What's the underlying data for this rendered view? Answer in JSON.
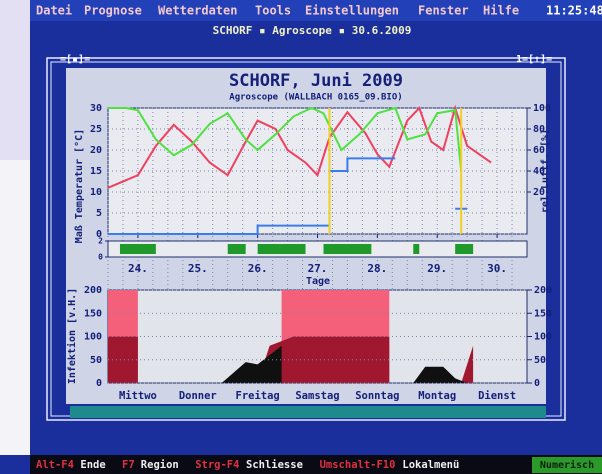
{
  "menu_bar": {
    "items": [
      "Datei",
      "Prognose",
      "Wetterdaten",
      "Tools",
      "Einstellungen",
      "Fenster",
      "Hilfe"
    ],
    "clock": "11:25:48"
  },
  "header": {
    "caption": "SCHORF ▪ Agroscope ▪ 30.6.2009"
  },
  "window": {
    "left_control": "=[▪]=",
    "right_control": "1=[↑]="
  },
  "weather_chart": {
    "type": "line",
    "title": "SCHORF, Juni 2009",
    "subtitle": "Agroscope (WALLBACH 0165_09.BIO)",
    "ylabel": "Maß Temperatur [°C]",
    "y2label": "rel.Luftf. [%]",
    "xlabel": "Tage",
    "xlim": [
      23.5,
      30.5
    ],
    "xticks": [
      {
        "value": 24,
        "label": "24."
      },
      {
        "value": 25,
        "label": "25."
      },
      {
        "value": 26,
        "label": "26."
      },
      {
        "value": 27,
        "label": "27."
      },
      {
        "value": 28,
        "label": "28."
      },
      {
        "value": 29,
        "label": "29."
      },
      {
        "value": 30,
        "label": "30."
      }
    ],
    "ylim": [
      0,
      30
    ],
    "yticks": [
      0,
      5,
      10,
      15,
      20,
      25,
      30
    ],
    "y2lim": [
      -20,
      100
    ],
    "y2ticks": [
      20,
      40,
      60,
      80,
      100
    ],
    "series": [
      {
        "color": "#f04060",
        "x": [
          23.5,
          24.0,
          24.3,
          24.6,
          24.9,
          25.2,
          25.5,
          25.8,
          26.0,
          26.3,
          26.5,
          26.8,
          27.0,
          27.2,
          27.5,
          27.8,
          28.0,
          28.2,
          28.5,
          28.7,
          28.9,
          29.1,
          29.3,
          29.5,
          29.7,
          29.9
        ],
        "values": [
          11,
          14,
          21,
          26,
          22,
          17,
          14,
          22,
          27,
          25,
          20,
          17,
          14,
          23,
          29,
          24,
          19,
          16,
          27,
          30,
          22,
          20,
          30,
          21,
          19,
          17
        ]
      },
      {
        "color": "#50e040",
        "axis": "y2",
        "x": [
          23.5,
          23.8,
          24.0,
          24.3,
          24.6,
          24.9,
          25.2,
          25.5,
          25.8,
          26.0,
          26.3,
          26.6,
          26.9,
          27.1,
          27.4,
          27.7,
          28.0,
          28.3,
          28.5,
          28.8,
          29.0,
          29.3,
          29.4
        ],
        "values": [
          100,
          100,
          98,
          70,
          55,
          65,
          85,
          95,
          70,
          60,
          75,
          92,
          100,
          95,
          60,
          75,
          95,
          100,
          70,
          75,
          95,
          98,
          40
        ]
      },
      {
        "color": "#3a7cf0",
        "x": [
          23.5,
          26.0,
          26.0,
          27.2,
          27.2,
          27.5,
          27.5,
          28.3,
          28.8,
          29.3,
          29.5
        ],
        "values": [
          0,
          0,
          2,
          2,
          15,
          15,
          18,
          18,
          null,
          6,
          6
        ]
      },
      {
        "color": "#f0d020",
        "x": [
          27.2,
          27.2,
          28.3,
          29.4,
          29.4
        ],
        "values": [
          0,
          30,
          null,
          0,
          30
        ]
      }
    ]
  },
  "wetness_strip": {
    "color": "#1f9a2a",
    "ylim": [
      0,
      2
    ],
    "yticks": [
      0,
      2
    ],
    "periods": [
      [
        23.7,
        24.3
      ],
      [
        25.5,
        25.8
      ],
      [
        26.0,
        26.8
      ],
      [
        27.1,
        27.9
      ],
      [
        28.6,
        28.7
      ],
      [
        29.3,
        29.6
      ]
    ]
  },
  "infection_chart": {
    "type": "area",
    "ylabel": "Infektion [v.H.]",
    "xlim": [
      23.5,
      30.5
    ],
    "categories": [
      "Mittwo",
      "Donner",
      "Freitag",
      "Samstag",
      "Sonntag",
      "Montag",
      "Dienst"
    ],
    "ylim": [
      0,
      200
    ],
    "yticks": [
      0,
      50,
      100,
      150,
      200
    ],
    "series": [
      {
        "color": "#f4607a",
        "x": [
          23.5,
          23.5,
          24.0,
          24.0,
          26.4,
          26.4,
          28.2,
          28.2
        ],
        "values": [
          0,
          200,
          200,
          0,
          0,
          200,
          200,
          0
        ]
      },
      {
        "color": "#a01830",
        "x": [
          23.5,
          23.5,
          24.0,
          24.0,
          26.0,
          26.2,
          26.6,
          28.2,
          28.2,
          29.4,
          29.6,
          29.6
        ],
        "values": [
          0,
          100,
          100,
          0,
          0,
          80,
          100,
          100,
          0,
          0,
          80,
          0
        ]
      },
      {
        "color": "#101010",
        "x": [
          25.4,
          25.8,
          26.0,
          26.2,
          26.4,
          26.4,
          28.6,
          28.8,
          29.1,
          29.3,
          29.5
        ],
        "values": [
          0,
          45,
          40,
          60,
          80,
          0,
          0,
          35,
          35,
          10,
          0
        ]
      }
    ]
  },
  "status_bar": {
    "items": [
      {
        "key": "Alt-F4",
        "label": "Ende"
      },
      {
        "key": "F7",
        "label": "Region"
      },
      {
        "key": "Strg-F4",
        "label": "Schliesse"
      },
      {
        "key": "Umschalt-F10",
        "label": "Lokalmenü"
      }
    ],
    "indicator": "Numerisch"
  }
}
